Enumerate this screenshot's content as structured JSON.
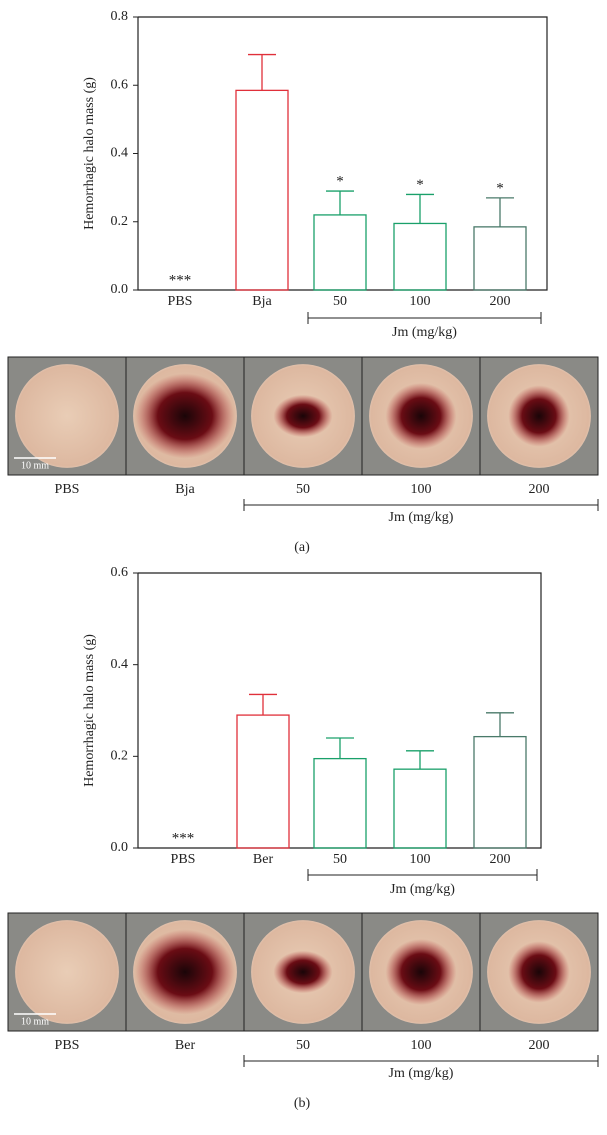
{
  "chart_data": [
    {
      "type": "bar",
      "ylabel": "Hemorrhagic halo mass (g)",
      "categories": [
        "PBS",
        "Bja",
        "50",
        "100",
        "200"
      ],
      "values": [
        0,
        0.585,
        0.22,
        0.195,
        0.185
      ],
      "errors": [
        null,
        0.105,
        0.07,
        0.085,
        0.085
      ],
      "annotations": [
        "***",
        null,
        "*",
        "*",
        "*"
      ],
      "colors": [
        "#333333",
        "#e0303a",
        "#1aa06a",
        "#1aa06a",
        "#4a7a6a"
      ],
      "group_label": "Jm (mg/kg)",
      "ylim": [
        0,
        0.8
      ],
      "yticks": [
        {
          "value": 0,
          "label": "0.0"
        },
        0.2,
        0.4,
        0.6,
        0.8
      ]
    },
    {
      "type": "bar",
      "ylabel": "Hemorrhagic halo mass (g)",
      "categories": [
        "PBS",
        "Ber",
        "50",
        "100",
        "200"
      ],
      "values": [
        0,
        0.29,
        0.195,
        0.172,
        0.243
      ],
      "errors": [
        null,
        0.045,
        0.045,
        0.04,
        0.052
      ],
      "annotations": [
        "***",
        null,
        null,
        null,
        null
      ],
      "colors": [
        "#333333",
        "#e0303a",
        "#1aa06a",
        "#1aa06a",
        "#4a7a6a"
      ],
      "group_label": "Jm (mg/kg)",
      "ylim": [
        0,
        0.6
      ],
      "yticks": [
        {
          "value": 0,
          "label": "0.0"
        },
        0.2,
        0.4,
        0.6
      ]
    }
  ],
  "photos": [
    {
      "labels": [
        "PBS",
        "Bja",
        "50",
        "100",
        "200"
      ],
      "scale_bar": "10 mm",
      "group_label": "Jm (mg/kg)",
      "caption": "(a)"
    },
    {
      "labels": [
        "PBS",
        "Ber",
        "50",
        "100",
        "200"
      ],
      "scale_bar": "10 mm",
      "group_label": "Jm (mg/kg)",
      "caption": "(b)"
    }
  ]
}
